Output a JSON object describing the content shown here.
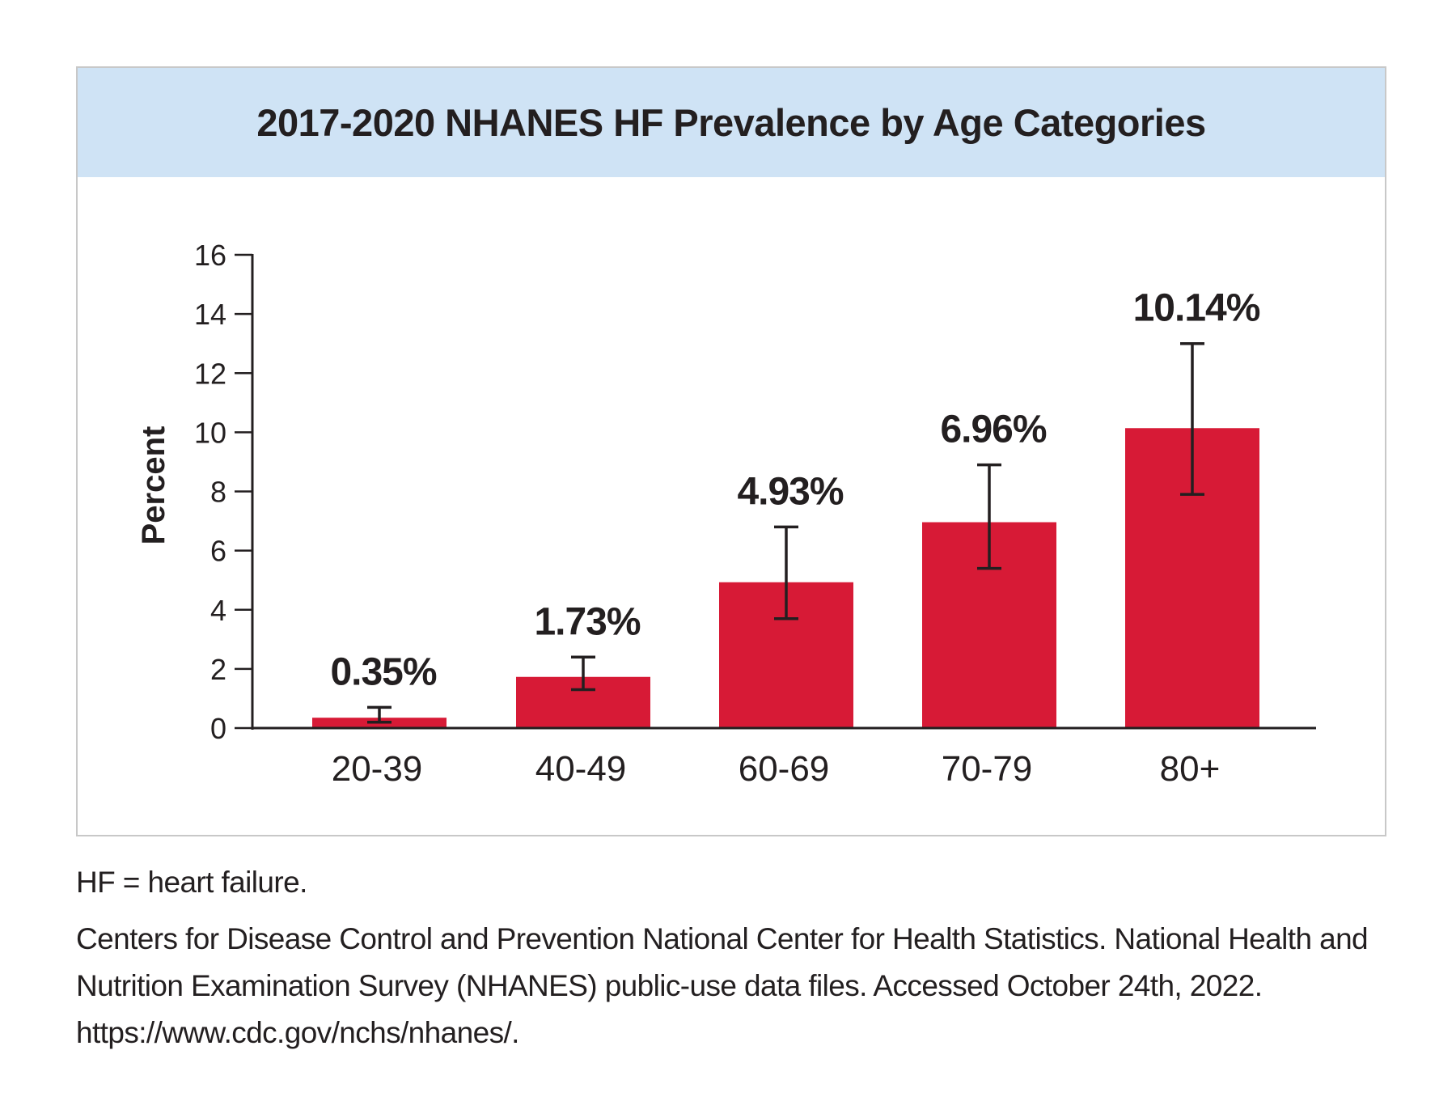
{
  "chart_data": {
    "type": "bar",
    "title": "2017-2020 NHANES HF Prevalence by Age Categories",
    "ylabel": "Percent",
    "xlabel": "",
    "categories": [
      "20-39",
      "40-49",
      "60-69",
      "70-79",
      "80+"
    ],
    "values": [
      0.35,
      1.73,
      4.93,
      6.96,
      10.14
    ],
    "value_labels": [
      "0.35%",
      "1.73%",
      "4.93%",
      "6.96%",
      "10.14%"
    ],
    "error_low": [
      0.2,
      1.3,
      3.7,
      5.4,
      7.9
    ],
    "error_high": [
      0.7,
      2.4,
      6.8,
      8.9,
      13.0
    ],
    "ylim": [
      0,
      16
    ],
    "yticks": [
      0,
      2,
      4,
      6,
      8,
      10,
      12,
      14,
      16
    ],
    "grid": false,
    "bar_color": "#d71a36"
  },
  "notes": {
    "abbreviation": "HF = heart failure.",
    "source_line1": "Centers for Disease Control and Prevention National Center for Health Statistics. National Health and",
    "source_line2": "Nutrition Examination Survey (NHANES) public-use data files. Accessed October 24th, 2022.",
    "source_line3": "https://www.cdc.gov/nchs/nhanes/."
  }
}
